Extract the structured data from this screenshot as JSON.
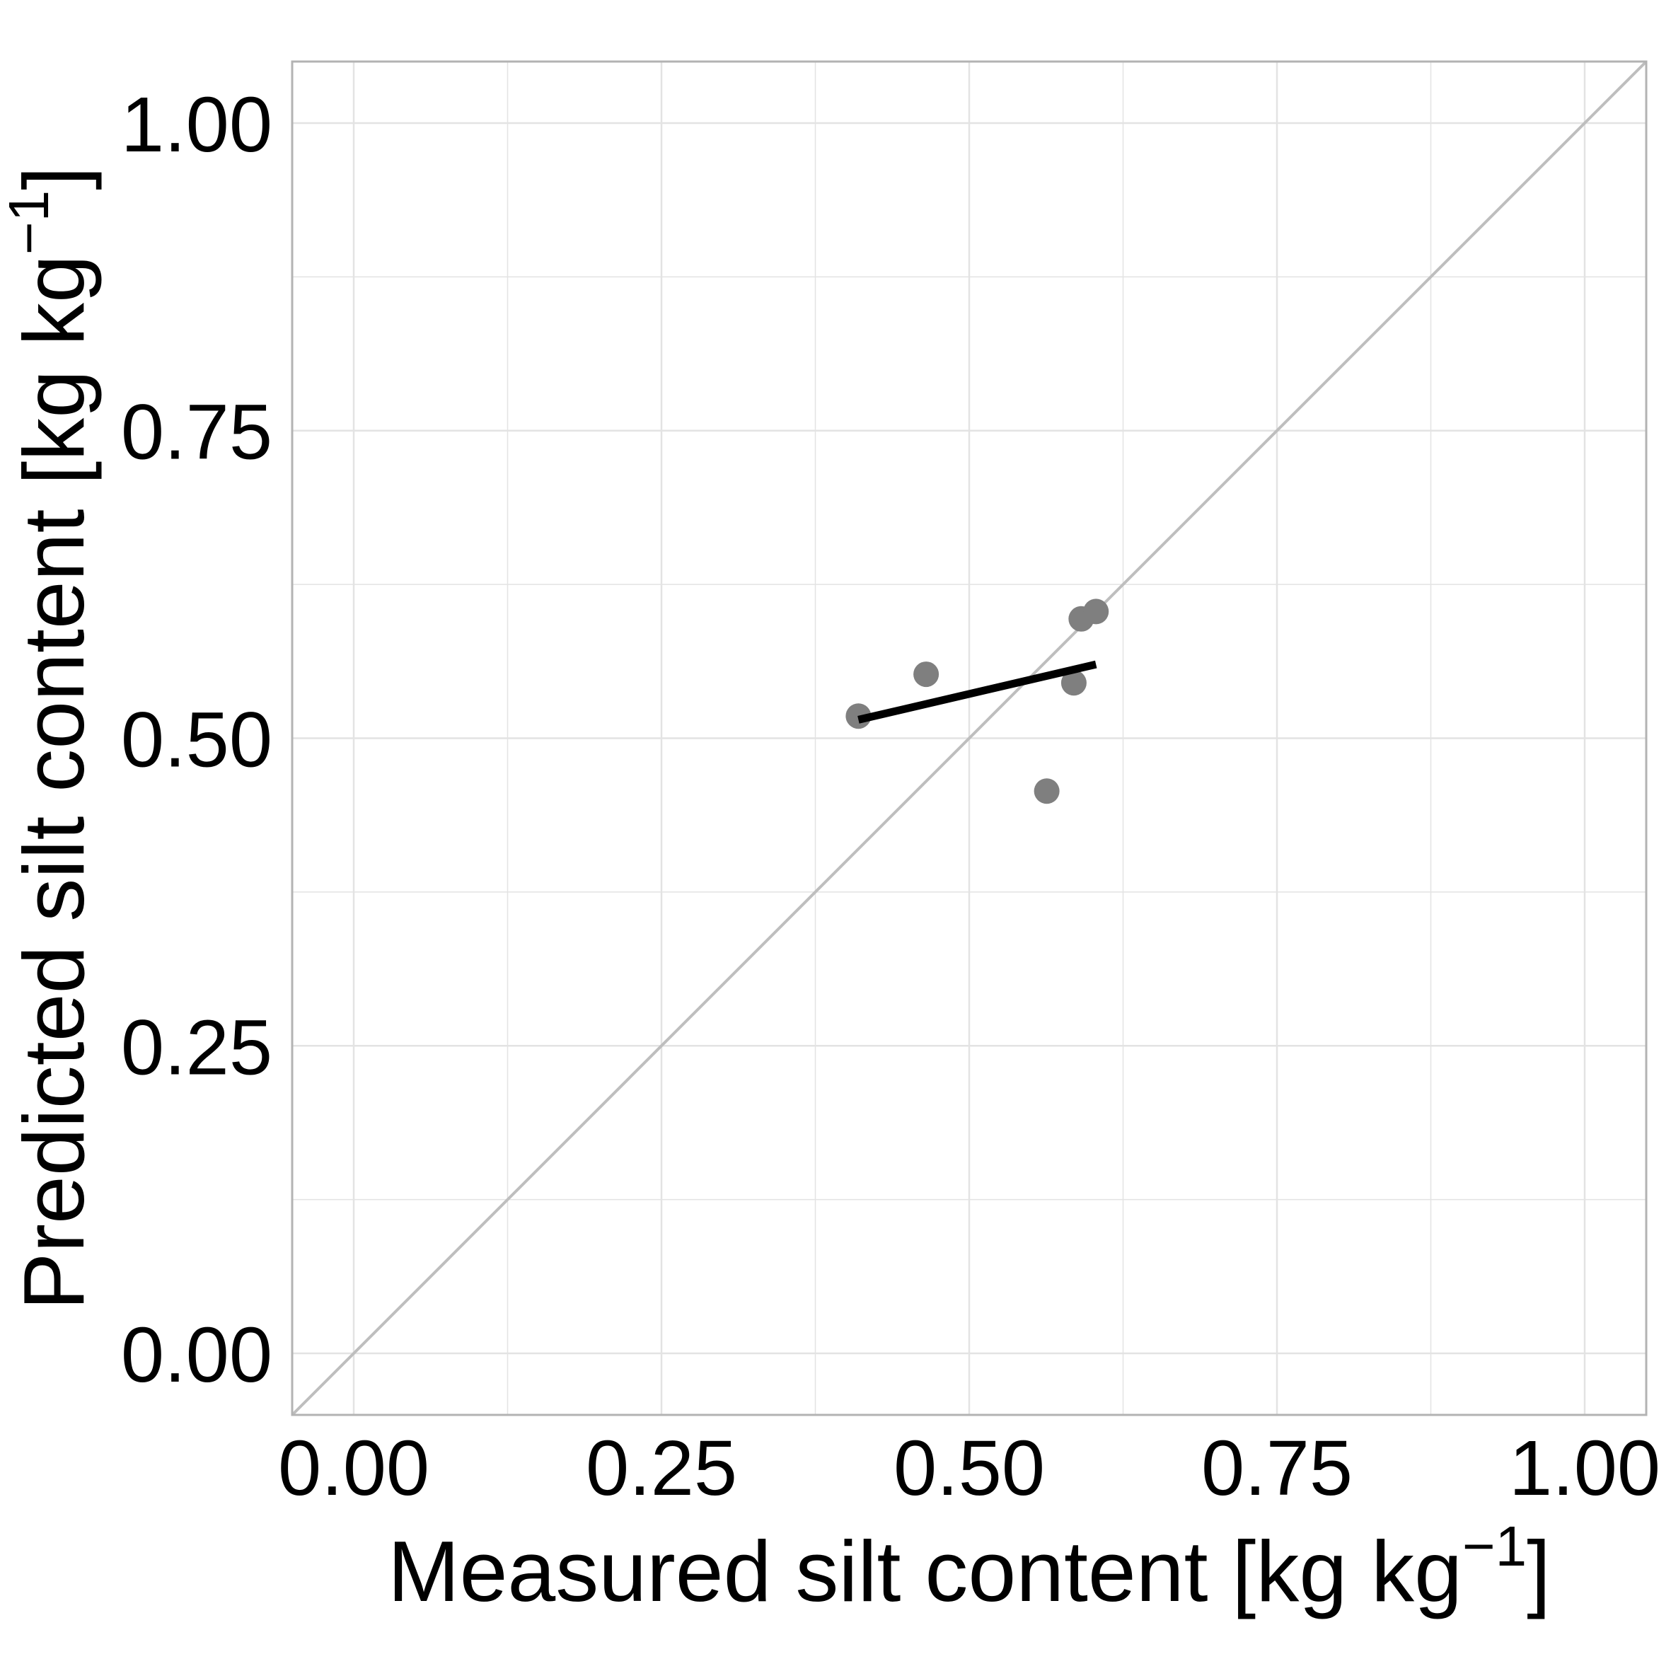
{
  "chart_data": {
    "type": "scatter",
    "title": "",
    "xlabel": "Measured silt content [kg kg",
    "ylabel": "Predicted silt content [kg kg",
    "unit_exponent": "−1",
    "unit_close": "]",
    "xlim": [
      -0.05,
      1.05
    ],
    "ylim": [
      -0.05,
      1.05
    ],
    "x_ticks": [
      "0.00",
      "0.25",
      "0.50",
      "0.75",
      "1.00"
    ],
    "y_ticks": [
      "0.00",
      "0.25",
      "0.50",
      "0.75",
      "1.00"
    ],
    "x_tick_values": [
      0,
      0.25,
      0.5,
      0.75,
      1.0
    ],
    "y_tick_values": [
      0,
      0.25,
      0.5,
      0.75,
      1.0
    ],
    "grid": true,
    "points": [
      {
        "x": 0.41,
        "y": 0.518
      },
      {
        "x": 0.465,
        "y": 0.552
      },
      {
        "x": 0.563,
        "y": 0.457
      },
      {
        "x": 0.585,
        "y": 0.545
      },
      {
        "x": 0.591,
        "y": 0.597
      },
      {
        "x": 0.603,
        "y": 0.603
      }
    ],
    "fit_line": {
      "x": [
        0.41,
        0.603
      ],
      "y": [
        0.515,
        0.56
      ]
    },
    "reference_line": {
      "x": [
        -0.05,
        1.05
      ],
      "y": [
        -0.05,
        1.05
      ]
    },
    "colors": {
      "points": "#7f7f7f",
      "fit_line": "#000000",
      "reference_line": "#bebebe",
      "grid": "#e3e3e3",
      "panel_border": "#b3b3b3"
    }
  }
}
